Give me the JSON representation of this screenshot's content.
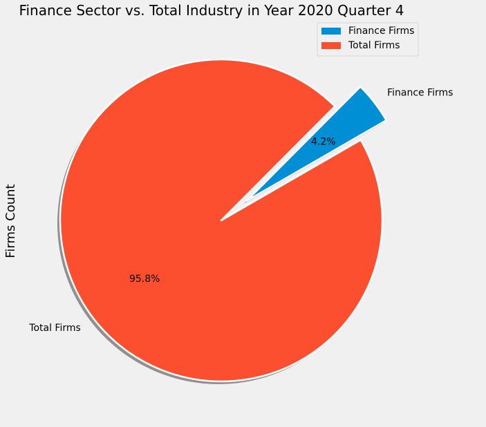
{
  "chart_data": {
    "type": "pie",
    "title": "Finance Sector vs. Total Industry in Year 2020 Quarter 4",
    "ylabel": "Firms Count",
    "categories": [
      "Finance Firms",
      "Total Firms"
    ],
    "values": [
      4.2,
      95.8
    ],
    "percent_labels": [
      "4.2%",
      "95.8%"
    ],
    "colors": [
      "#008fd5",
      "#fc4f30"
    ],
    "explode": [
      0.2,
      0
    ],
    "start_angle_deg": 30,
    "shadow": true,
    "legend": {
      "placement": "top-right",
      "entries": [
        "Finance Firms",
        "Total Firms"
      ]
    }
  }
}
